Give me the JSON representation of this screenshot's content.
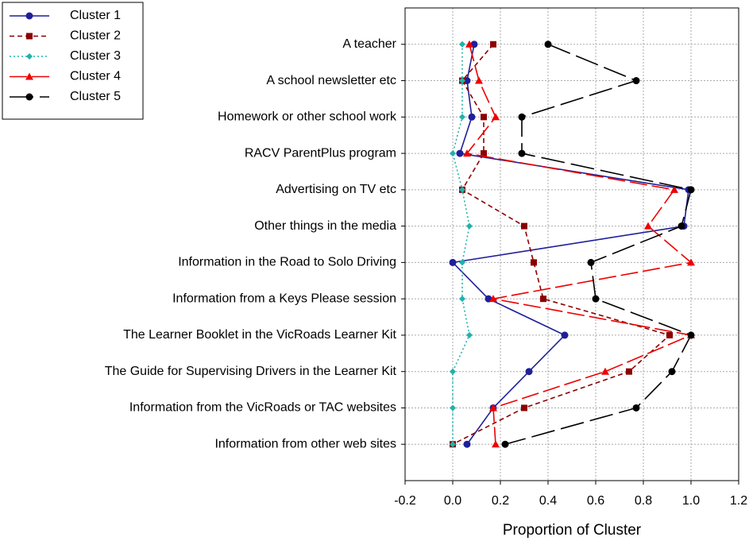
{
  "chart_data": {
    "type": "line",
    "orientation": "horizontal",
    "xlabel": "Proportion of Cluster",
    "categories": [
      "A teacher",
      "A school newsletter etc",
      "Homework or other school work",
      "RACV ParentPlus program",
      "Advertising on TV etc",
      "Other things in the media",
      "Information in the Road to Solo Driving",
      "Information from a Keys Please session",
      "The Learner Booklet in the VicRoads Learner Kit",
      "The Guide for Supervising Drivers in the Learner Kit",
      "Information from the VicRoads or TAC websites",
      "Information from other web sites"
    ],
    "series": [
      {
        "name": "Cluster 1",
        "color": "#1f1f9a",
        "dash": "solid",
        "marker": "circle",
        "values": [
          0.09,
          0.06,
          0.08,
          0.03,
          0.99,
          0.97,
          0.0,
          0.15,
          0.47,
          0.32,
          0.17,
          0.06
        ]
      },
      {
        "name": "Cluster 2",
        "color": "#8b0000",
        "dash": "dashed",
        "marker": "square",
        "values": [
          0.17,
          0.04,
          0.13,
          0.13,
          0.04,
          0.3,
          0.34,
          0.38,
          0.91,
          0.74,
          0.3,
          0.0
        ]
      },
      {
        "name": "Cluster 3",
        "color": "#20b2aa",
        "dash": "dotted",
        "marker": "diamond",
        "values": [
          0.04,
          0.04,
          0.04,
          0.0,
          0.04,
          0.07,
          0.04,
          0.04,
          0.07,
          0.0,
          0.0,
          0.0
        ]
      },
      {
        "name": "Cluster 4",
        "color": "#ee0000",
        "dash": "longdash",
        "marker": "triangle",
        "values": [
          0.07,
          0.11,
          0.18,
          0.06,
          0.93,
          0.82,
          1.0,
          0.17,
          1.0,
          0.64,
          0.17,
          0.18
        ]
      },
      {
        "name": "Cluster 5",
        "color": "#000000",
        "dash": "dashdot",
        "marker": "circle",
        "values": [
          0.4,
          0.77,
          0.29,
          0.29,
          1.0,
          0.96,
          0.58,
          0.6,
          1.0,
          0.92,
          0.77,
          0.22
        ]
      }
    ],
    "xlim": [
      -0.2,
      1.2
    ],
    "xticks": [
      -0.2,
      {
        "value": 0,
        "label": "0.0"
      },
      0.2,
      0.4,
      0.6,
      0.8,
      {
        "value": 1,
        "label": "1.0"
      },
      1.2
    ],
    "grid": true,
    "legend": "upper-left"
  }
}
